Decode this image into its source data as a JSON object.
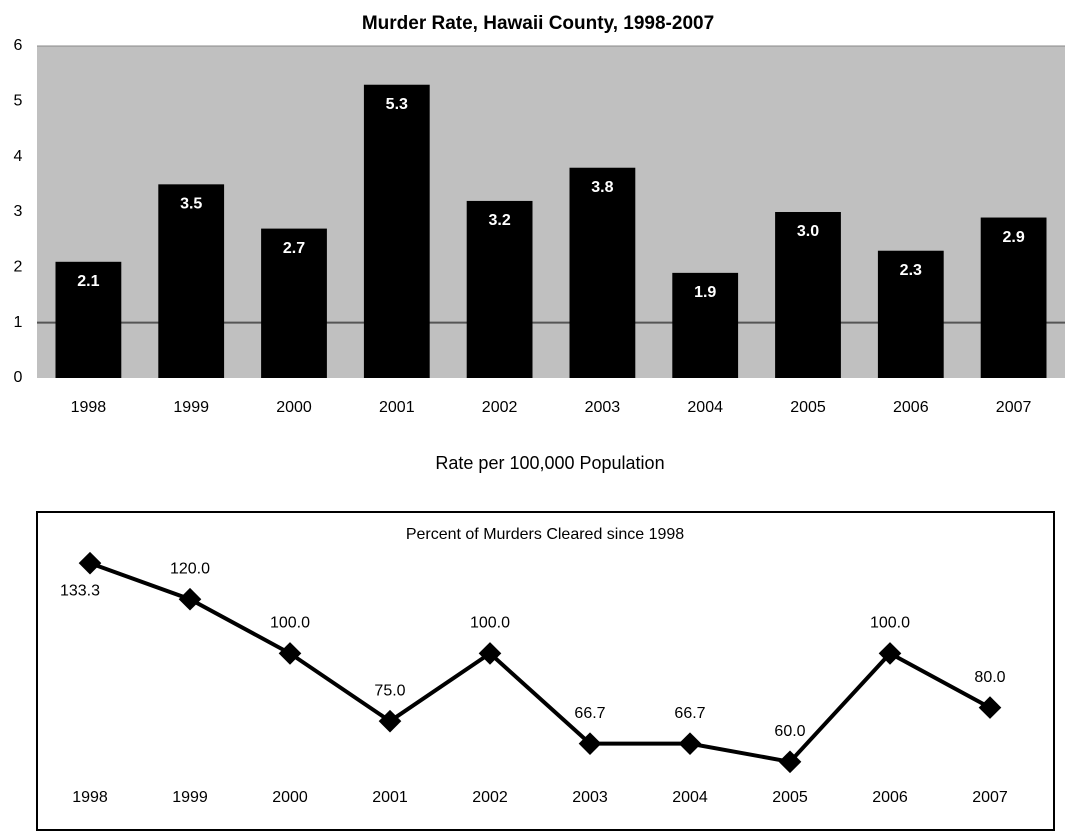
{
  "chart_data": [
    {
      "type": "bar",
      "title": "Murder Rate, Hawaii County, 1998-2007",
      "x_label": "Rate per 100,000 Population",
      "categories": [
        "1998",
        "1999",
        "2000",
        "2001",
        "2002",
        "2003",
        "2004",
        "2005",
        "2006",
        "2007"
      ],
      "values": [
        2.1,
        3.5,
        2.7,
        5.3,
        3.2,
        3.8,
        1.9,
        3.0,
        2.3,
        2.9
      ],
      "value_labels": [
        "2.1",
        "3.5",
        "2.7",
        "5.3",
        "3.2",
        "3.8",
        "1.9",
        "3.0",
        "2.3",
        "2.9"
      ],
      "color": "#000000",
      "background": "#c0c0c0",
      "ylim": [
        0,
        6
      ],
      "yticks": [
        0,
        1,
        2,
        3,
        4,
        5,
        6
      ],
      "ref_line": 1
    },
    {
      "type": "line",
      "title": "Percent of Murders Cleared since 1998",
      "categories": [
        "1998",
        "1999",
        "2000",
        "2001",
        "2002",
        "2003",
        "2004",
        "2005",
        "2006",
        "2007"
      ],
      "values": [
        133.3,
        120.0,
        100.0,
        75.0,
        100.0,
        66.7,
        66.7,
        60.0,
        100.0,
        80.0
      ],
      "value_labels": [
        "133.3",
        "120.0",
        "100.0",
        "75.0",
        "100.0",
        "66.7",
        "66.7",
        "60.0",
        "100.0",
        "80.0"
      ],
      "color": "#000000",
      "ylim": [
        40,
        140
      ]
    }
  ]
}
